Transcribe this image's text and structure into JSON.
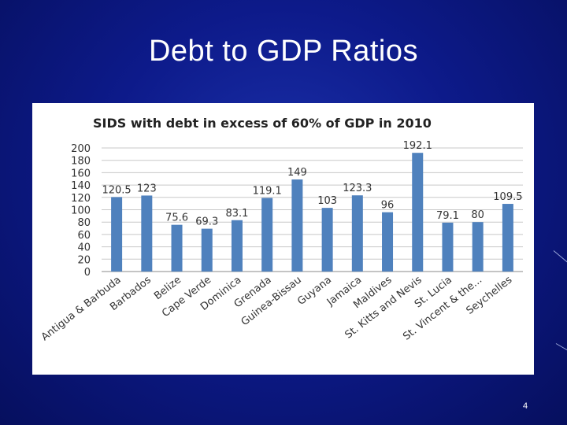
{
  "slide": {
    "title": "Debt to GDP Ratios",
    "page_number": "4"
  },
  "colors": {
    "bar": "#4f81bd",
    "background": "#0d1a8a"
  },
  "chart_data": {
    "type": "bar",
    "title": "SIDS with debt in excess of 60% of GDP in 2010",
    "xlabel": "",
    "ylabel": "",
    "ylim": [
      0,
      200
    ],
    "yticks": [
      0,
      20,
      40,
      60,
      80,
      100,
      120,
      140,
      160,
      180,
      200
    ],
    "grid": true,
    "legend": "none",
    "categories": [
      "Antigua & Barbuda",
      "Barbados",
      "Belize",
      "Cape Verde",
      "Dominica",
      "Grenada",
      "Guinea-Bissau",
      "Guyana",
      "Jamaica",
      "Maldives",
      "St. Kitts and Nevis",
      "St. Lucia",
      "St. Vincent & the...",
      "Seychelles"
    ],
    "values": [
      120.5,
      123,
      75.6,
      69.3,
      83.1,
      119.1,
      149,
      103,
      123.3,
      96,
      192.1,
      79.1,
      80,
      109.5
    ],
    "labels": [
      "120.5",
      "123",
      "75.6",
      "69.3",
      "83.1",
      "119.1",
      "149",
      "103",
      "123.3",
      "96",
      "192.1",
      "79.1",
      "80",
      "109.5"
    ]
  }
}
